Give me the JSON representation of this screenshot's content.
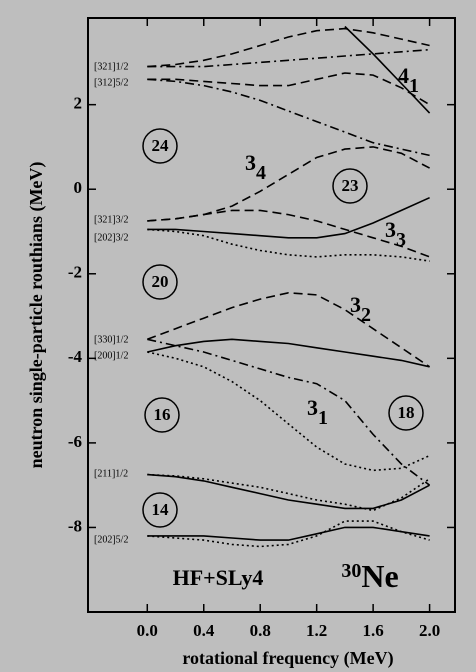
{
  "chart_data": {
    "type": "line",
    "xlabel": "rotational frequency (MeV)",
    "ylabel": "neutron single-particle routhians (MeV)",
    "xlim": [
      -0.42,
      2.18
    ],
    "xticks": [
      {
        "value": 0,
        "label": "0.0"
      },
      0.4,
      0.8,
      1.2,
      1.6,
      {
        "value": 2,
        "label": "2.0"
      }
    ],
    "ylim": [
      -10,
      4.05
    ],
    "yticks": [
      -8,
      -6,
      -4,
      -2,
      0,
      2
    ],
    "x": [
      0,
      0.2,
      0.4,
      0.6,
      0.8,
      1.0,
      1.2,
      1.4,
      1.6,
      1.8,
      2.0
    ],
    "series": [
      {
        "color": "#000000",
        "style": "dashed",
        "values": [
          2.9,
          2.95,
          3.05,
          3.2,
          3.4,
          3.6,
          3.75,
          3.8,
          3.7,
          3.55,
          3.4
        ]
      },
      {
        "color": "#000000",
        "style": "dashdot",
        "values": [
          2.9,
          2.9,
          2.9,
          2.95,
          3.0,
          3.05,
          3.1,
          3.15,
          3.2,
          3.25,
          3.3
        ]
      },
      {
        "color": "#000000",
        "style": "dashed",
        "values": [
          2.6,
          2.6,
          2.55,
          2.5,
          2.45,
          2.45,
          2.6,
          2.75,
          2.7,
          2.4,
          2.0
        ]
      },
      {
        "color": "#000000",
        "style": "solid",
        "values": [
          null,
          null,
          null,
          null,
          null,
          null,
          null,
          3.85,
          3.2,
          2.5,
          1.8
        ]
      },
      {
        "color": "#000000",
        "style": "dashdot",
        "values": [
          2.6,
          2.55,
          2.45,
          2.3,
          2.1,
          1.85,
          1.6,
          1.35,
          1.1,
          0.95,
          0.8
        ]
      },
      {
        "color": "#000000",
        "style": "dashed",
        "values": [
          -0.75,
          -0.7,
          -0.6,
          -0.4,
          -0.05,
          0.35,
          0.75,
          0.95,
          1.0,
          0.85,
          0.5
        ]
      },
      {
        "color": "#000000",
        "style": "dashed",
        "values": [
          -0.75,
          -0.7,
          -0.6,
          -0.5,
          -0.5,
          -0.6,
          -0.75,
          -0.95,
          -1.15,
          -1.35,
          -1.6
        ]
      },
      {
        "color": "#000000",
        "style": "solid",
        "values": [
          -0.95,
          -0.95,
          -1.0,
          -1.05,
          -1.1,
          -1.15,
          -1.15,
          -1.05,
          -0.8,
          -0.5,
          -0.2
        ]
      },
      {
        "color": "#000000",
        "style": "dotted",
        "values": [
          -0.95,
          -1.0,
          -1.1,
          -1.3,
          -1.45,
          -1.55,
          -1.6,
          -1.55,
          -1.55,
          -1.6,
          -1.7
        ]
      },
      {
        "color": "#000000",
        "style": "dashed",
        "values": [
          -3.55,
          -3.3,
          -3.05,
          -2.8,
          -2.6,
          -2.45,
          -2.5,
          -2.85,
          -3.3,
          -3.75,
          -4.2
        ]
      },
      {
        "color": "#000000",
        "style": "solid",
        "values": [
          -3.85,
          -3.7,
          -3.6,
          -3.55,
          -3.6,
          -3.65,
          -3.75,
          -3.85,
          -3.95,
          -4.05,
          -4.2
        ]
      },
      {
        "color": "#000000",
        "style": "dashdot",
        "values": [
          -3.55,
          -3.7,
          -3.85,
          -4.05,
          -4.25,
          -4.45,
          -4.6,
          -5.0,
          -5.8,
          -6.5,
          -7.0
        ]
      },
      {
        "color": "#000000",
        "style": "dotted",
        "values": [
          -3.85,
          -4.0,
          -4.2,
          -4.55,
          -5.0,
          -5.55,
          -6.1,
          -6.5,
          -6.65,
          -6.6,
          -6.3
        ]
      },
      {
        "color": "#000000",
        "style": "solid",
        "values": [
          -6.75,
          -6.8,
          -6.9,
          -7.05,
          -7.2,
          -7.35,
          -7.45,
          -7.55,
          -7.55,
          -7.35,
          -7.0
        ]
      },
      {
        "color": "#000000",
        "style": "dotted",
        "values": [
          -6.75,
          -6.78,
          -6.85,
          -6.95,
          -7.05,
          -7.2,
          -7.35,
          -7.45,
          -7.6,
          -7.3,
          -6.85
        ]
      },
      {
        "color": "#000000",
        "style": "solid",
        "values": [
          -8.2,
          -8.2,
          -8.2,
          -8.25,
          -8.3,
          -8.3,
          -8.15,
          -8.0,
          -8.0,
          -8.1,
          -8.2
        ]
      },
      {
        "color": "#000000",
        "style": "dotted",
        "values": [
          -8.2,
          -8.25,
          -8.3,
          -8.4,
          -8.45,
          -8.4,
          -8.2,
          -7.85,
          -7.85,
          -8.1,
          -8.3
        ]
      }
    ],
    "orbital_labels": [
      "[321]1/2",
      "[312]5/2",
      "[321]3/2",
      "[202]3/2",
      "[330]1/2",
      "[200]1/2",
      "[211]1/2",
      "[202]5/2"
    ],
    "gap_labels": [
      "24",
      "20",
      "16",
      "14",
      "23",
      "18"
    ],
    "band_labels": [
      {
        "main": "4",
        "sub": "1"
      },
      {
        "main": "3",
        "sub": "4"
      },
      {
        "main": "3",
        "sub": "3"
      },
      {
        "main": "3",
        "sub": "2"
      },
      {
        "main": "3",
        "sub": "1"
      }
    ],
    "model_label": "HF+SLy4",
    "nucleus": {
      "mass": "30",
      "symbol": "Ne"
    }
  }
}
